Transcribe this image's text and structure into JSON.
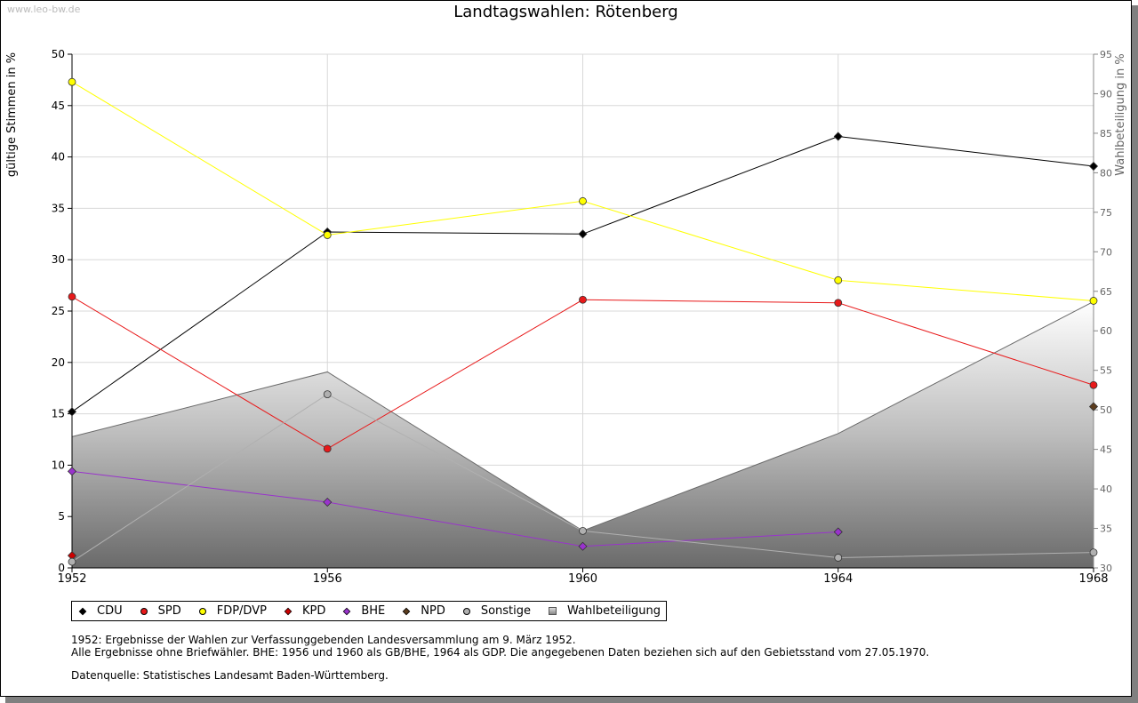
{
  "watermark": "www.leo-bw.de",
  "title": "Landtagswahlen: Rötenberg",
  "chart_data": {
    "type": "line",
    "title": "Landtagswahlen: Rötenberg",
    "x": [
      "1952",
      "1956",
      "1960",
      "1964",
      "1968"
    ],
    "ylabel": "gültige Stimmen in %",
    "y2label": "Wahlbeteiligung in %",
    "ylim": [
      0,
      50
    ],
    "y2lim": [
      30,
      95
    ],
    "yticks": [
      "0",
      "5",
      "10",
      "15",
      "20",
      "25",
      "30",
      "35",
      "40",
      "45",
      "50"
    ],
    "y2ticks": [
      "30",
      "35",
      "40",
      "45",
      "50",
      "55",
      "60",
      "65",
      "70",
      "75",
      "80",
      "85",
      "90",
      "95"
    ],
    "grid": true,
    "series": [
      {
        "name": "CDU",
        "color": "#000000",
        "marker": "diamond",
        "values": [
          15.2,
          32.7,
          32.5,
          42.0,
          39.1
        ]
      },
      {
        "name": "SPD",
        "color": "#e8191a",
        "marker": "circle",
        "values": [
          26.4,
          11.6,
          26.1,
          25.8,
          17.8
        ]
      },
      {
        "name": "FDP/DVP",
        "color": "#ffff00",
        "marker": "circle",
        "values": [
          47.3,
          32.4,
          35.7,
          28.0,
          26.0
        ]
      },
      {
        "name": "KPD",
        "color": "#cc0000",
        "marker": "diamond",
        "values": [
          1.2,
          null,
          null,
          null,
          null
        ]
      },
      {
        "name": "BHE",
        "color": "#9933cc",
        "marker": "diamond",
        "values": [
          9.4,
          6.4,
          2.1,
          3.5,
          null
        ]
      },
      {
        "name": "NPD",
        "color": "#5c3d1e",
        "marker": "diamond",
        "values": [
          null,
          null,
          null,
          null,
          15.7
        ]
      },
      {
        "name": "Sonstige",
        "color": "#b0b0b0",
        "marker": "circle",
        "values": [
          0.6,
          16.9,
          3.6,
          1.0,
          1.5
        ]
      }
    ],
    "area_series": {
      "name": "Wahlbeteiligung",
      "axis": "right",
      "values": [
        46.6,
        54.8,
        34.7,
        47.0,
        63.7
      ]
    }
  },
  "legend": [
    {
      "label": "CDU",
      "color": "#000000",
      "shape": "diamond"
    },
    {
      "label": "SPD",
      "color": "#e8191a",
      "shape": "circle"
    },
    {
      "label": "FDP/DVP",
      "color": "#ffff00",
      "shape": "circle"
    },
    {
      "label": "KPD",
      "color": "#cc0000",
      "shape": "diamond"
    },
    {
      "label": "BHE",
      "color": "#9933cc",
      "shape": "diamond"
    },
    {
      "label": "NPD",
      "color": "#5c3d1e",
      "shape": "diamond"
    },
    {
      "label": "Sonstige",
      "color": "#b0b0b0",
      "shape": "circle"
    },
    {
      "label": "Wahlbeteiligung",
      "color": "#aaaaaa",
      "shape": "square"
    }
  ],
  "notes": {
    "line1": "1952: Ergebnisse der Wahlen zur Verfassunggebenden Landesversammlung am 9. März 1952.",
    "line2": "Alle Ergebnisse ohne Briefwähler. BHE: 1956 und 1960 als GB/BHE, 1964 als GDP. Die angegebenen Daten beziehen sich auf den Gebietsstand vom 27.05.1970.",
    "source": "Datenquelle: Statistisches Landesamt Baden-Württemberg."
  }
}
